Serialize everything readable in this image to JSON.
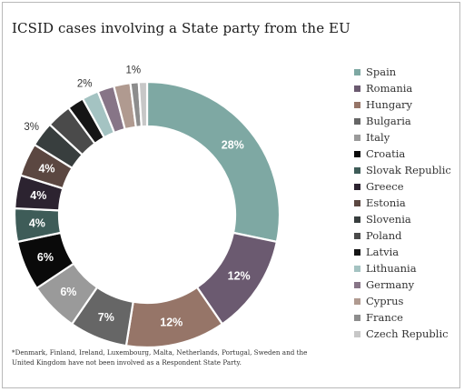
{
  "chart_data": {
    "type": "pie",
    "title": "ICSID cases involving a State party from the EU",
    "categories": [
      "Spain",
      "Romania",
      "Hungary",
      "Bulgaria",
      "Italy",
      "Croatia",
      "Slovak Republic",
      "Greece",
      "Estonia",
      "Slovenia",
      "Poland",
      "Latvia",
      "Lithuania",
      "Germany",
      "Cyprus",
      "France",
      "Czech Republic"
    ],
    "values": [
      28,
      12,
      12,
      7,
      6,
      6,
      4,
      4,
      4,
      3,
      3,
      2,
      2,
      2,
      2,
      1,
      1
    ],
    "colors": [
      "#7ea8a3",
      "#6b5a70",
      "#967568",
      "#666666",
      "#9a9a9a",
      "#0a0a0a",
      "#3e5c58",
      "#2c2330",
      "#5b4741",
      "#383e3e",
      "#4a4a4a",
      "#151515",
      "#a4c3c2",
      "#877587",
      "#b09a90",
      "#8d8d8d",
      "#c7c7c7"
    ],
    "data_labels": [
      "28%",
      "12%",
      "12%",
      "7%",
      "6%",
      "6%",
      "4%",
      "4%",
      "4%",
      "3%",
      "",
      "",
      "2%",
      "",
      "",
      "1%",
      ""
    ],
    "legend": "right"
  },
  "footnote": "*Denmark, Finland, Ireland, Luxembourg, Malta, Netherlands, Portugal, Sweden and the United Kingdom have not been involved as a Respondent State Party."
}
